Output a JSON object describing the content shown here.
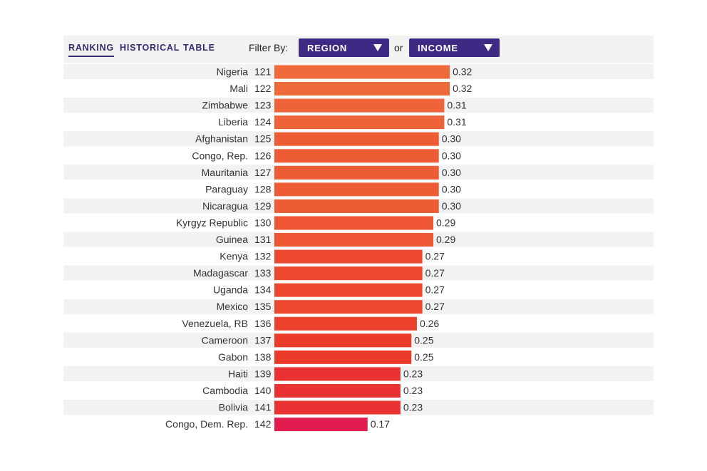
{
  "tabs": [
    {
      "label": "RANKING",
      "active": true
    },
    {
      "label": "HISTORICAL",
      "active": false
    },
    {
      "label": "TABLE",
      "active": false
    }
  ],
  "filter": {
    "label": "Filter By:",
    "region_label": "REGION",
    "or_label": "or",
    "income_label": "INCOME"
  },
  "colors": {
    "accent": "#3d2a85",
    "row_stripe": "#f2f2f2",
    "bar_high": "#ef6a3a",
    "bar_mid": "#ec3a2a",
    "bar_low": "#e31b4f"
  },
  "chart_data": {
    "type": "bar",
    "orientation": "horizontal",
    "categories": [
      "Nigeria",
      "Mali",
      "Zimbabwe",
      "Liberia",
      "Afghanistan",
      "Congo, Rep.",
      "Mauritania",
      "Paraguay",
      "Nicaragua",
      "Kyrgyz Republic",
      "Guinea",
      "Kenya",
      "Madagascar",
      "Uganda",
      "Mexico",
      "Venezuela, RB",
      "Cameroon",
      "Gabon",
      "Haiti",
      "Cambodia",
      "Bolivia",
      "Congo, Dem. Rep."
    ],
    "ranks": [
      121,
      122,
      123,
      124,
      125,
      126,
      127,
      128,
      129,
      130,
      131,
      132,
      133,
      134,
      135,
      136,
      137,
      138,
      139,
      140,
      141,
      142
    ],
    "values": [
      0.32,
      0.32,
      0.31,
      0.31,
      0.3,
      0.3,
      0.3,
      0.3,
      0.3,
      0.29,
      0.29,
      0.27,
      0.27,
      0.27,
      0.27,
      0.26,
      0.25,
      0.25,
      0.23,
      0.23,
      0.23,
      0.17
    ],
    "value_labels": [
      "0.32",
      "0.32",
      "0.31",
      "0.31",
      "0.30",
      "0.30",
      "0.30",
      "0.30",
      "0.30",
      "0.29",
      "0.29",
      "0.27",
      "0.27",
      "0.27",
      "0.27",
      "0.26",
      "0.25",
      "0.25",
      "0.23",
      "0.23",
      "0.23",
      "0.17"
    ],
    "title": "",
    "xlabel": "",
    "ylabel": "",
    "grid": false,
    "legend": "none"
  }
}
